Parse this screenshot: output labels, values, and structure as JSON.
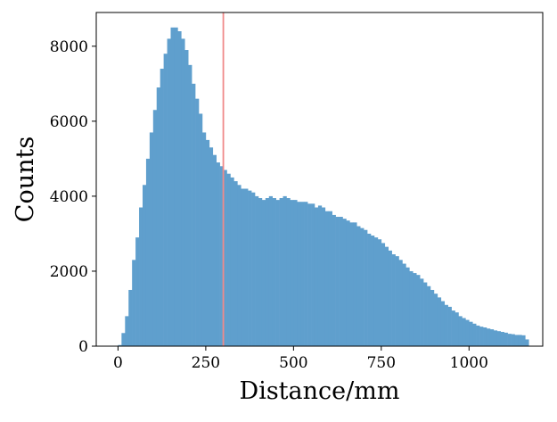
{
  "chart_data": {
    "type": "bar",
    "title": "",
    "xlabel": "Distance/mm",
    "ylabel": "Counts",
    "xlim": [
      -62,
      1210
    ],
    "ylim": [
      0,
      8900
    ],
    "bin_width": 10,
    "bin_starts": [
      0,
      10,
      20,
      30,
      40,
      50,
      60,
      70,
      80,
      90,
      100,
      110,
      120,
      130,
      140,
      150,
      160,
      170,
      180,
      190,
      200,
      210,
      220,
      230,
      240,
      250,
      260,
      270,
      280,
      290,
      300,
      310,
      320,
      330,
      340,
      350,
      360,
      370,
      380,
      390,
      400,
      410,
      420,
      430,
      440,
      450,
      460,
      470,
      480,
      490,
      500,
      510,
      520,
      530,
      540,
      550,
      560,
      570,
      580,
      590,
      600,
      610,
      620,
      630,
      640,
      650,
      660,
      670,
      680,
      690,
      700,
      710,
      720,
      730,
      740,
      750,
      760,
      770,
      780,
      790,
      800,
      810,
      820,
      830,
      840,
      850,
      860,
      870,
      880,
      890,
      900,
      910,
      920,
      930,
      940,
      950,
      960,
      970,
      980,
      990,
      1000,
      1010,
      1020,
      1030,
      1040,
      1050,
      1060,
      1070,
      1080,
      1090,
      1100,
      1110,
      1120,
      1130,
      1140,
      1150,
      1160
    ],
    "counts": [
      30,
      350,
      800,
      1500,
      2300,
      2900,
      3700,
      4300,
      5000,
      5700,
      6300,
      6900,
      7400,
      7800,
      8200,
      8500,
      8500,
      8400,
      8200,
      7900,
      7500,
      7000,
      6600,
      6200,
      5700,
      5500,
      5300,
      5100,
      4900,
      4800,
      4700,
      4600,
      4500,
      4400,
      4300,
      4200,
      4200,
      4150,
      4100,
      4000,
      3950,
      3900,
      3950,
      4000,
      3950,
      3900,
      3950,
      4000,
      3950,
      3900,
      3900,
      3850,
      3850,
      3850,
      3800,
      3800,
      3700,
      3750,
      3700,
      3600,
      3600,
      3500,
      3450,
      3450,
      3400,
      3350,
      3300,
      3300,
      3200,
      3150,
      3100,
      3000,
      2950,
      2900,
      2850,
      2750,
      2650,
      2550,
      2450,
      2400,
      2300,
      2200,
      2100,
      2000,
      1950,
      1900,
      1800,
      1700,
      1600,
      1500,
      1400,
      1300,
      1200,
      1100,
      1050,
      950,
      900,
      800,
      750,
      700,
      650,
      600,
      550,
      520,
      500,
      470,
      450,
      420,
      400,
      380,
      360,
      330,
      320,
      300,
      300,
      290,
      180
    ],
    "bar_color": "#5f9fcd",
    "reference_line": {
      "x": 300,
      "color": "#f08a8a"
    },
    "xticks": [
      0,
      250,
      500,
      750,
      1000
    ],
    "xtick_labels": [
      "0",
      "250",
      "500",
      "750",
      "1000"
    ],
    "yticks": [
      0,
      2000,
      4000,
      6000,
      8000
    ],
    "ytick_labels": [
      "0",
      "2000",
      "4000",
      "6000",
      "8000"
    ],
    "grid": false,
    "legend": "none"
  }
}
